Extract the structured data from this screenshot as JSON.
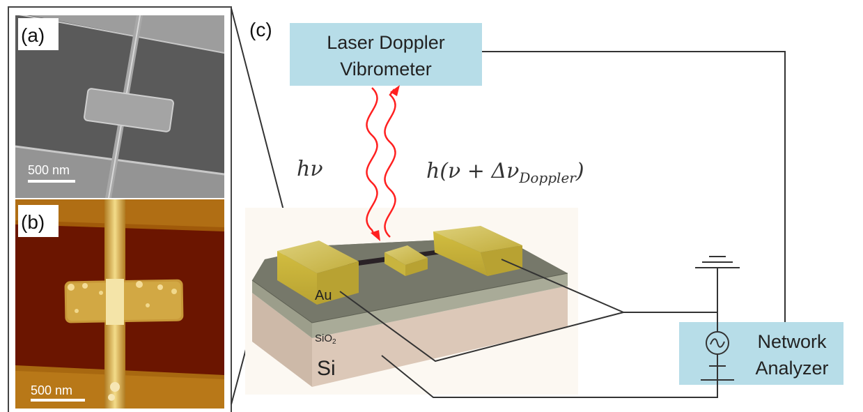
{
  "panels": {
    "a": {
      "label": "(a)",
      "scale_bar": "500 nm"
    },
    "b": {
      "label": "(b)",
      "scale_bar": "500 nm"
    },
    "c": {
      "label": "(c)"
    }
  },
  "boxes": {
    "vibrometer": {
      "line1": "Laser Doppler",
      "line2": "Vibrometer"
    },
    "analyzer": {
      "line1": "Network",
      "line2": "Analyzer",
      "icon": "ac-source-icon"
    }
  },
  "equations": {
    "incident": "hν",
    "reflected_main": "h(ν + Δν",
    "reflected_sub": "Doppler",
    "reflected_close": ")"
  },
  "layers": {
    "gold": "Au",
    "oxide_base": "SiO",
    "oxide_sub": "2",
    "substrate": "Si"
  },
  "colors": {
    "box_fill": "#b7dde8",
    "beam": "#ff2020",
    "gold": "#c9b440",
    "oxide": "#a9ab98",
    "silicon": "#dcc8b8",
    "top_surface": "#76786a",
    "afm_dark": "#6b1500",
    "afm_bright": "#e8c060",
    "sem_gray": "#5a5a5a"
  }
}
